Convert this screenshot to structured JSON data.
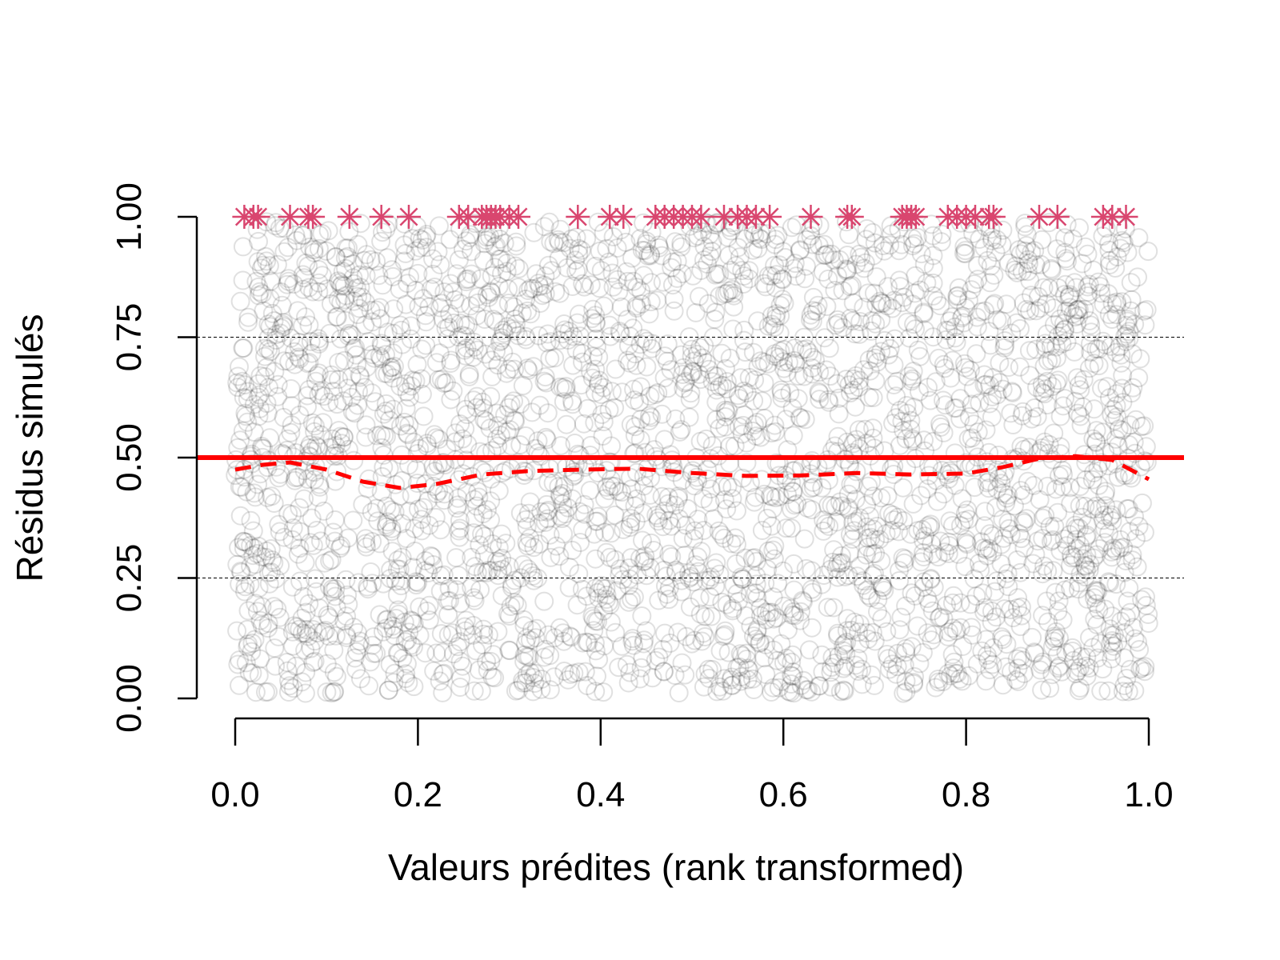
{
  "chart_data": {
    "type": "scatter",
    "title": "",
    "xlabel": "Valeurs prédites (rank transformed)",
    "ylabel": "Résidus simulés",
    "xlim": [
      0.0,
      1.0
    ],
    "ylim": [
      0.0,
      1.0
    ],
    "x_ticks": [
      "0.0",
      "0.2",
      "0.4",
      "0.6",
      "0.8",
      "1.0"
    ],
    "y_ticks": [
      "0.00",
      "0.25",
      "0.50",
      "0.75",
      "1.00"
    ],
    "x_tick_values": [
      0.0,
      0.2,
      0.4,
      0.6,
      0.8,
      1.0
    ],
    "y_tick_values": [
      0.0,
      0.25,
      0.5,
      0.75,
      1.0
    ],
    "grid": "dashed horizontal lines at 0.25 and 0.75",
    "reference_line": {
      "y": 0.5,
      "color": "#ff0000",
      "style": "solid"
    },
    "smooth_curve": {
      "color": "#ff0000",
      "style": "dashed",
      "x": [
        0.0,
        0.03,
        0.06,
        0.1,
        0.14,
        0.18,
        0.22,
        0.27,
        0.32,
        0.38,
        0.44,
        0.5,
        0.56,
        0.62,
        0.68,
        0.74,
        0.8,
        0.84,
        0.88,
        0.92,
        0.96,
        1.0
      ],
      "y": [
        0.475,
        0.485,
        0.49,
        0.475,
        0.45,
        0.437,
        0.445,
        0.465,
        0.472,
        0.475,
        0.477,
        0.468,
        0.462,
        0.463,
        0.468,
        0.465,
        0.467,
        0.48,
        0.498,
        0.503,
        0.495,
        0.455
      ]
    },
    "outliers": {
      "label": "outliers at y = 1",
      "color": "#d9466f",
      "y": 1.0,
      "x": [
        0.01,
        0.02,
        0.025,
        0.06,
        0.08,
        0.085,
        0.125,
        0.16,
        0.19,
        0.245,
        0.255,
        0.27,
        0.275,
        0.28,
        0.285,
        0.29,
        0.3,
        0.31,
        0.375,
        0.41,
        0.425,
        0.46,
        0.47,
        0.48,
        0.49,
        0.5,
        0.51,
        0.535,
        0.55,
        0.56,
        0.57,
        0.585,
        0.63,
        0.67,
        0.675,
        0.73,
        0.735,
        0.74,
        0.745,
        0.78,
        0.79,
        0.8,
        0.81,
        0.825,
        0.83,
        0.88,
        0.9,
        0.95,
        0.96,
        0.975
      ]
    },
    "residuals": {
      "description": "about 3000 simulated residual points, grey translucent open circles",
      "color": "#000000",
      "opacity": 0.12,
      "n": 3000,
      "distribution": "uniform on [0,1] in both x and y"
    }
  }
}
